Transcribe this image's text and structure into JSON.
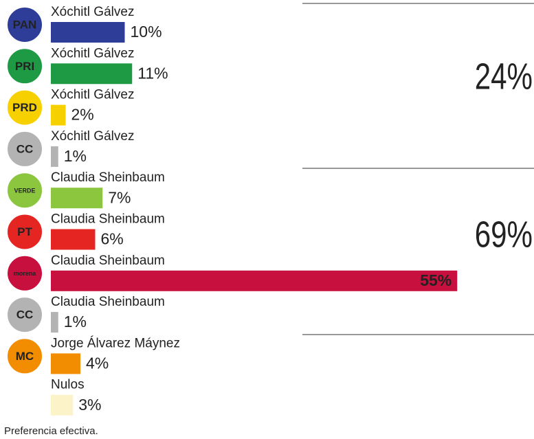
{
  "chart_data": {
    "type": "bar",
    "categories": [
      "Xóchitl Gálvez",
      "Xóchitl Gálvez",
      "Xóchitl Gálvez",
      "Xóchitl Gálvez",
      "Claudia Sheinbaum",
      "Claudia Sheinbaum",
      "Claudia Sheinbaum",
      "Claudia Sheinbaum",
      "Jorge Álvarez Máynez",
      "Nulos"
    ],
    "parties": [
      "PAN",
      "PRI",
      "PRD",
      "CC",
      "VERDE",
      "PT",
      "morena",
      "CC",
      "MC",
      null
    ],
    "values": [
      10,
      11,
      2,
      1,
      7,
      6,
      55,
      1,
      4,
      3
    ],
    "value_labels": [
      "10%",
      "11%",
      "2%",
      "1%",
      "7%",
      "6%",
      "55%",
      "1%",
      "4%",
      "3%"
    ],
    "colors": [
      "#2e3d97",
      "#1e9a45",
      "#f7d000",
      "#b3b3b3",
      "#8cc63f",
      "#e52521",
      "#c8103e",
      "#b3b3b3",
      "#f28c00",
      "#fdf3c8"
    ],
    "totals": [
      24,
      69
    ],
    "total_labels": [
      "24%",
      "69%"
    ],
    "note": "Preferencia efectiva."
  }
}
